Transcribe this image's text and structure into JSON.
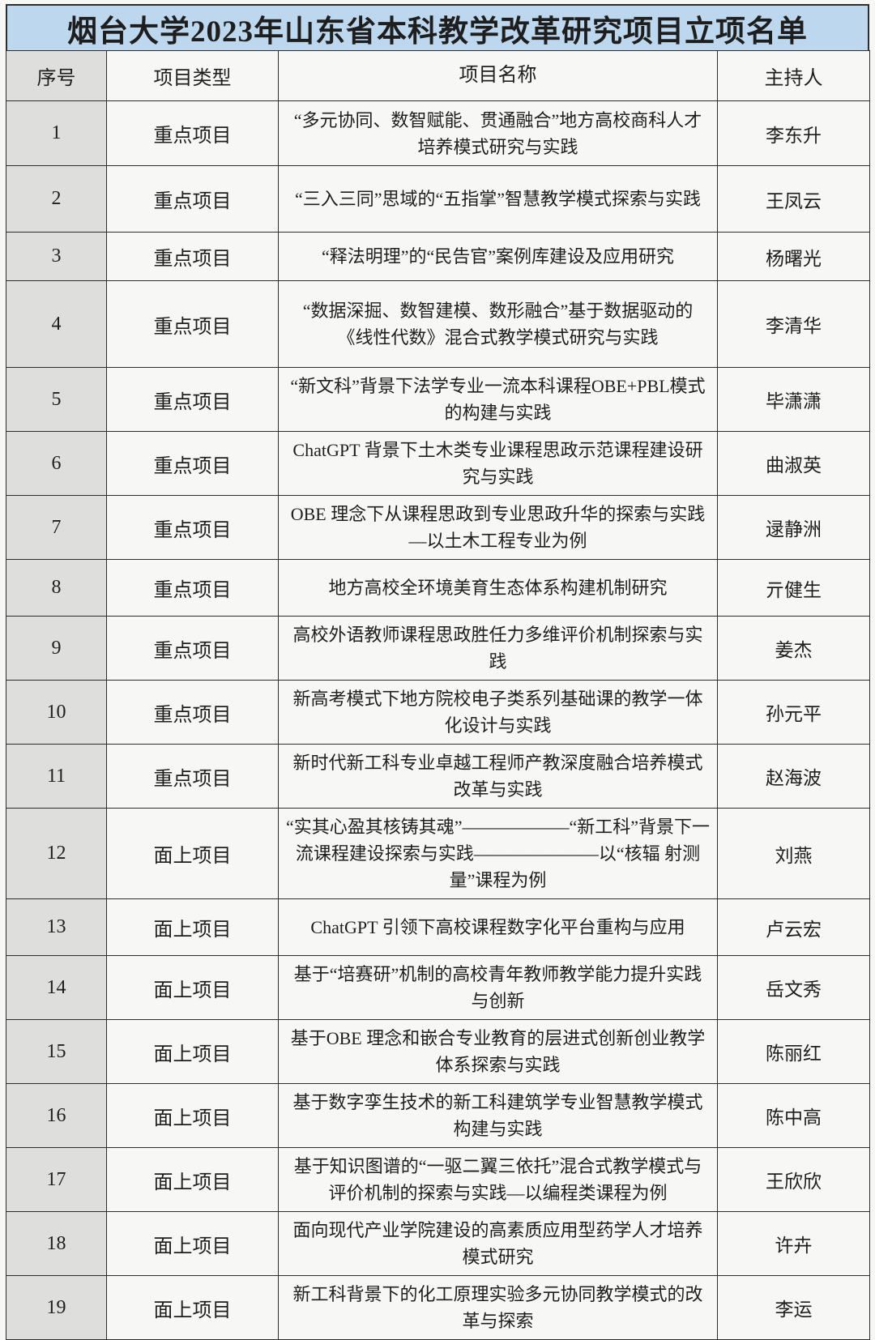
{
  "title": "烟台大学2023年山东省本科教学改革研究项目立项名单",
  "columns": {
    "no": "序号",
    "type": "项目类型",
    "name": "项目名称",
    "leader": "主持人"
  },
  "rows": [
    {
      "no": "1",
      "type": "重点项目",
      "name": "“多元协同、数智赋能、贯通融合”地方高校商科人才培养模式研究与实践",
      "leader": "李东升"
    },
    {
      "no": "2",
      "type": "重点项目",
      "name": "“三入三同”思域的“五指掌”智慧教学模式探索与实践",
      "leader": "王凤云"
    },
    {
      "no": "3",
      "type": "重点项目",
      "name": "“释法明理”的“民告官”案例库建设及应用研究",
      "leader": "杨曙光"
    },
    {
      "no": "4",
      "type": "重点项目",
      "name": "“数据深掘、数智建模、数形融合”基于数据驱动的《线性代数》混合式教学模式研究与实践",
      "leader": "李清华"
    },
    {
      "no": "5",
      "type": "重点项目",
      "name": "“新文科”背景下法学专业一流本科课程OBE+PBL模式的构建与实践",
      "leader": "毕潇潇"
    },
    {
      "no": "6",
      "type": "重点项目",
      "name": "ChatGPT 背景下土木类专业课程思政示范课程建设研究与实践",
      "leader": "曲淑英"
    },
    {
      "no": "7",
      "type": "重点项目",
      "name": "OBE 理念下从课程思政到专业思政升华的探索与实践—以土木工程专业为例",
      "leader": "逯静洲"
    },
    {
      "no": "8",
      "type": "重点项目",
      "name": "地方高校全环境美育生态体系构建机制研究",
      "leader": "亓健生"
    },
    {
      "no": "9",
      "type": "重点项目",
      "name": "高校外语教师课程思政胜任力多维评价机制探索与实践",
      "leader": "姜杰"
    },
    {
      "no": "10",
      "type": "重点项目",
      "name": "新高考模式下地方院校电子类系列基础课的教学一体化设计与实践",
      "leader": "孙元平"
    },
    {
      "no": "11",
      "type": "重点项目",
      "name": "新时代新工科专业卓越工程师产教深度融合培养模式改革与实践",
      "leader": "赵海波"
    },
    {
      "no": "12",
      "type": "面上项目",
      "name": "“实其心盈其核铸其魂”——————“新工科”背景下一流课程建设探索与实践———————以“核辐 射测量”课程为例",
      "leader": "刘燕"
    },
    {
      "no": "13",
      "type": "面上项目",
      "name": "ChatGPT 引领下高校课程数字化平台重构与应用",
      "leader": "卢云宏"
    },
    {
      "no": "14",
      "type": "面上项目",
      "name": "基于“培赛研”机制的高校青年教师教学能力提升实践与创新",
      "leader": "岳文秀"
    },
    {
      "no": "15",
      "type": "面上项目",
      "name": "基于OBE 理念和嵌合专业教育的层进式创新创业教学体系探索与实践",
      "leader": "陈丽红"
    },
    {
      "no": "16",
      "type": "面上项目",
      "name": "基于数字孪生技术的新工科建筑学专业智慧教学模式构建与实践",
      "leader": "陈中高"
    },
    {
      "no": "17",
      "type": "面上项目",
      "name": "基于知识图谱的“一驱二翼三依托”混合式教学模式与评价机制的探索与实践—以编程类课程为例",
      "leader": "王欣欣"
    },
    {
      "no": "18",
      "type": "面上项目",
      "name": "面向现代产业学院建设的高素质应用型药学人才培养模式研究",
      "leader": "许卉"
    },
    {
      "no": "19",
      "type": "面上项目",
      "name": "新工科背景下的化工原理实验多元协同教学模式的改革与探索",
      "leader": "李运"
    }
  ],
  "colors": {
    "title_bg": "#bdd7ee",
    "index_col_bg": "#dededc",
    "border": "#2e2e2e",
    "text": "#1e1e1e",
    "page_bg": "#f7f7f5"
  }
}
